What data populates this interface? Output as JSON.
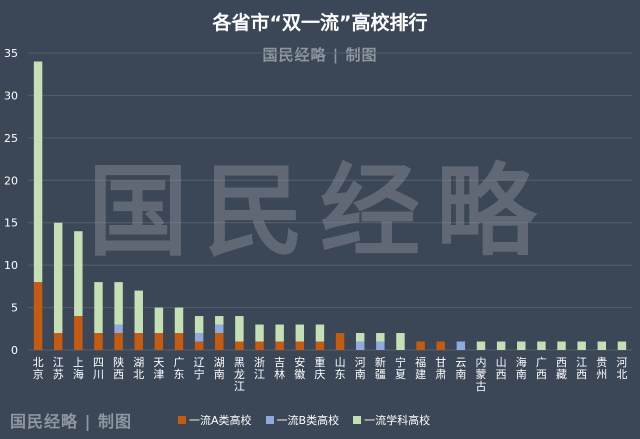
{
  "header": {
    "title": "各省市“双一流”高校排行",
    "subtitle": "国民经略 | 制图"
  },
  "watermark": "国民经略",
  "footer": {
    "credit": "国民经略 | 制图"
  },
  "colors": {
    "background": "#3b4656",
    "a_class": "#c55a11",
    "b_class": "#8faadc",
    "discipline": "#c5e0b4",
    "gridline": "#55606e"
  },
  "chart_data": {
    "type": "bar",
    "stacked": true,
    "title": "各省市“双一流”高校排行",
    "xlabel": "",
    "ylabel": "",
    "ylim": [
      0,
      35
    ],
    "yticks": [
      0,
      5,
      10,
      15,
      20,
      25,
      30,
      35
    ],
    "grid": true,
    "legend_position": "bottom",
    "categories": [
      "北京",
      "江苏",
      "上海",
      "四川",
      "陕西",
      "湖北",
      "天津",
      "广东",
      "辽宁",
      "湖南",
      "黑龙江",
      "浙江",
      "吉林",
      "安徽",
      "重庆",
      "山东",
      "河南",
      "新疆",
      "宁夏",
      "福建",
      "甘肃",
      "云南",
      "内蒙古",
      "山西",
      "海南",
      "广西",
      "西藏",
      "江西",
      "贵州",
      "河北"
    ],
    "series": [
      {
        "name": "一流A类高校",
        "values": [
          8,
          2,
          4,
          2,
          2,
          2,
          2,
          2,
          1,
          2,
          1,
          1,
          1,
          1,
          1,
          2,
          0,
          0,
          0,
          1,
          1,
          0,
          0,
          0,
          0,
          0,
          0,
          0,
          0,
          0
        ]
      },
      {
        "name": "一流B类高校",
        "values": [
          0,
          0,
          0,
          0,
          1,
          0,
          0,
          0,
          1,
          1,
          0,
          0,
          0,
          0,
          0,
          0,
          1,
          1,
          0,
          0,
          0,
          1,
          0,
          0,
          0,
          0,
          0,
          0,
          0,
          0
        ]
      },
      {
        "name": "一流学科高校",
        "values": [
          26,
          13,
          10,
          6,
          5,
          5,
          3,
          3,
          2,
          1,
          3,
          2,
          2,
          2,
          2,
          0,
          1,
          1,
          2,
          0,
          0,
          0,
          1,
          1,
          1,
          1,
          1,
          1,
          1,
          1
        ]
      }
    ]
  }
}
